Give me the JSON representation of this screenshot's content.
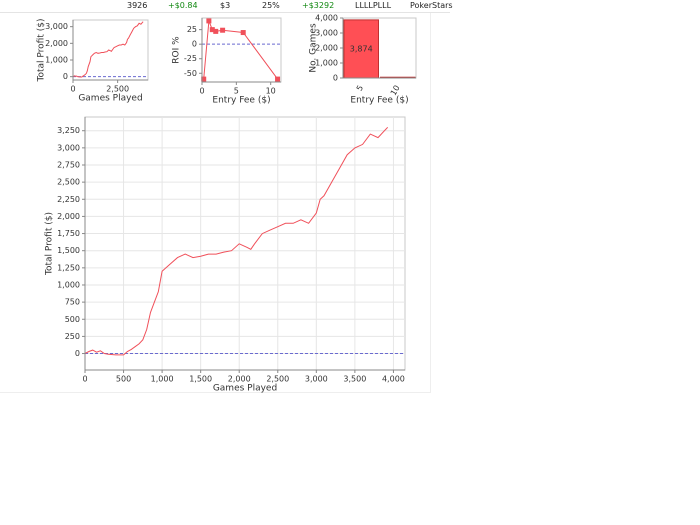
{
  "summary_row": [
    "3926",
    "+$0.84",
    "$3",
    "25%",
    "+$3292",
    "LLLLPLLL",
    "PokerStars"
  ],
  "chart_data": [
    {
      "type": "line",
      "x_label": "Games Played",
      "y_label": "Total Profit ($)",
      "color": "#f0505a",
      "reference_line": 0,
      "x": [
        0,
        50,
        100,
        150,
        200,
        250,
        300,
        400,
        500,
        550,
        600,
        650,
        700,
        750,
        800,
        850,
        900,
        950,
        1000,
        1050,
        1100,
        1200,
        1300,
        1400,
        1500,
        1600,
        1700,
        1800,
        1900,
        2000,
        2100,
        2150,
        2200,
        2300,
        2400,
        2500,
        2600,
        2700,
        2800,
        2900,
        3000,
        3050,
        3100,
        3200,
        3300,
        3400,
        3500,
        3600,
        3700,
        3800,
        3926
      ],
      "values": [
        0,
        30,
        50,
        20,
        40,
        0,
        -10,
        -20,
        -20,
        30,
        60,
        100,
        140,
        200,
        350,
        600,
        750,
        900,
        1200,
        1250,
        1300,
        1400,
        1450,
        1400,
        1420,
        1450,
        1450,
        1480,
        1500,
        1600,
        1550,
        1520,
        1600,
        1750,
        1800,
        1850,
        1900,
        1900,
        1950,
        1900,
        2050,
        2250,
        2300,
        2500,
        2700,
        2900,
        3000,
        3050,
        3200,
        3150,
        3300
      ],
      "xlim": [
        0,
        4200
      ],
      "xticks": [
        0,
        {
          "value": 2500,
          "label": "2,500"
        }
      ],
      "ylim": [
        -200,
        3400
      ],
      "yticks": [
        0,
        {
          "value": 1000,
          "label": "1,000"
        },
        {
          "value": 2000,
          "label": "2,000"
        },
        {
          "value": 3000,
          "label": "3,000"
        }
      ],
      "grid": false
    },
    {
      "type": "line",
      "x_label": "Entry Fee ($)",
      "y_label": "ROI %",
      "color": "#f0505a",
      "markers": true,
      "reference_line": 0,
      "x": [
        0.25,
        1,
        1.5,
        2,
        3,
        6,
        11
      ],
      "values": [
        -60,
        40,
        25,
        22,
        24,
        20,
        -60
      ],
      "xlim": [
        0,
        11.5
      ],
      "xticks": [
        0,
        5,
        10
      ],
      "ylim": [
        -65,
        45
      ],
      "yticks": [
        -50,
        -25,
        0,
        25
      ],
      "grid": false
    },
    {
      "type": "bar",
      "x_label": "Entry Fee ($)",
      "y_label": "No. Games",
      "color": "#ff4f55",
      "categories": [
        "5",
        "10"
      ],
      "values": [
        3874,
        52
      ],
      "value_labels": [
        "3,874",
        null
      ],
      "ylim": [
        0,
        4000
      ],
      "yticks": [
        0,
        {
          "value": 1000,
          "label": "1,000"
        },
        {
          "value": 2000,
          "label": "2,000"
        },
        {
          "value": 3000,
          "label": "3,000"
        },
        {
          "value": 4000,
          "label": "4,000"
        }
      ],
      "grid": false
    },
    {
      "type": "line",
      "x_label": "Games Played",
      "y_label": "Total Profit ($)",
      "color": "#f0505a",
      "reference_line": 0,
      "x": [
        0,
        50,
        100,
        150,
        200,
        250,
        300,
        400,
        500,
        550,
        600,
        650,
        700,
        750,
        800,
        850,
        900,
        950,
        1000,
        1050,
        1100,
        1200,
        1300,
        1400,
        1500,
        1600,
        1700,
        1800,
        1900,
        2000,
        2100,
        2150,
        2200,
        2300,
        2400,
        2500,
        2600,
        2700,
        2800,
        2900,
        3000,
        3050,
        3100,
        3200,
        3300,
        3400,
        3500,
        3600,
        3700,
        3800,
        3926
      ],
      "values": [
        0,
        30,
        50,
        20,
        40,
        0,
        -10,
        -20,
        -20,
        30,
        60,
        100,
        140,
        200,
        350,
        600,
        750,
        900,
        1200,
        1250,
        1300,
        1400,
        1450,
        1400,
        1420,
        1450,
        1450,
        1480,
        1500,
        1600,
        1550,
        1520,
        1600,
        1750,
        1800,
        1850,
        1900,
        1900,
        1950,
        1900,
        2050,
        2250,
        2300,
        2500,
        2700,
        2900,
        3000,
        3050,
        3200,
        3150,
        3300
      ],
      "xlim": [
        0,
        4150
      ],
      "xticks": [
        0,
        500,
        {
          "value": 1000,
          "label": "1,000"
        },
        {
          "value": 1500,
          "label": "1,500"
        },
        {
          "value": 2000,
          "label": "2,000"
        },
        {
          "value": 2500,
          "label": "2,500"
        },
        {
          "value": 3000,
          "label": "3,000"
        },
        {
          "value": 3500,
          "label": "3,500"
        },
        {
          "value": 4000,
          "label": "4,000"
        }
      ],
      "ylim": [
        -240,
        3450
      ],
      "yticks": [
        0,
        250,
        500,
        750,
        {
          "value": 1000,
          "label": "1,000"
        },
        {
          "value": 1250,
          "label": "1,250"
        },
        {
          "value": 1500,
          "label": "1,500"
        },
        {
          "value": 1750,
          "label": "1,750"
        },
        {
          "value": 2000,
          "label": "2,000"
        },
        {
          "value": 2250,
          "label": "2,250"
        },
        {
          "value": 2500,
          "label": "2,500"
        },
        {
          "value": 2750,
          "label": "2,750"
        },
        {
          "value": 3000,
          "label": "3,000"
        },
        {
          "value": 3250,
          "label": "3,250"
        }
      ],
      "grid": true
    }
  ]
}
